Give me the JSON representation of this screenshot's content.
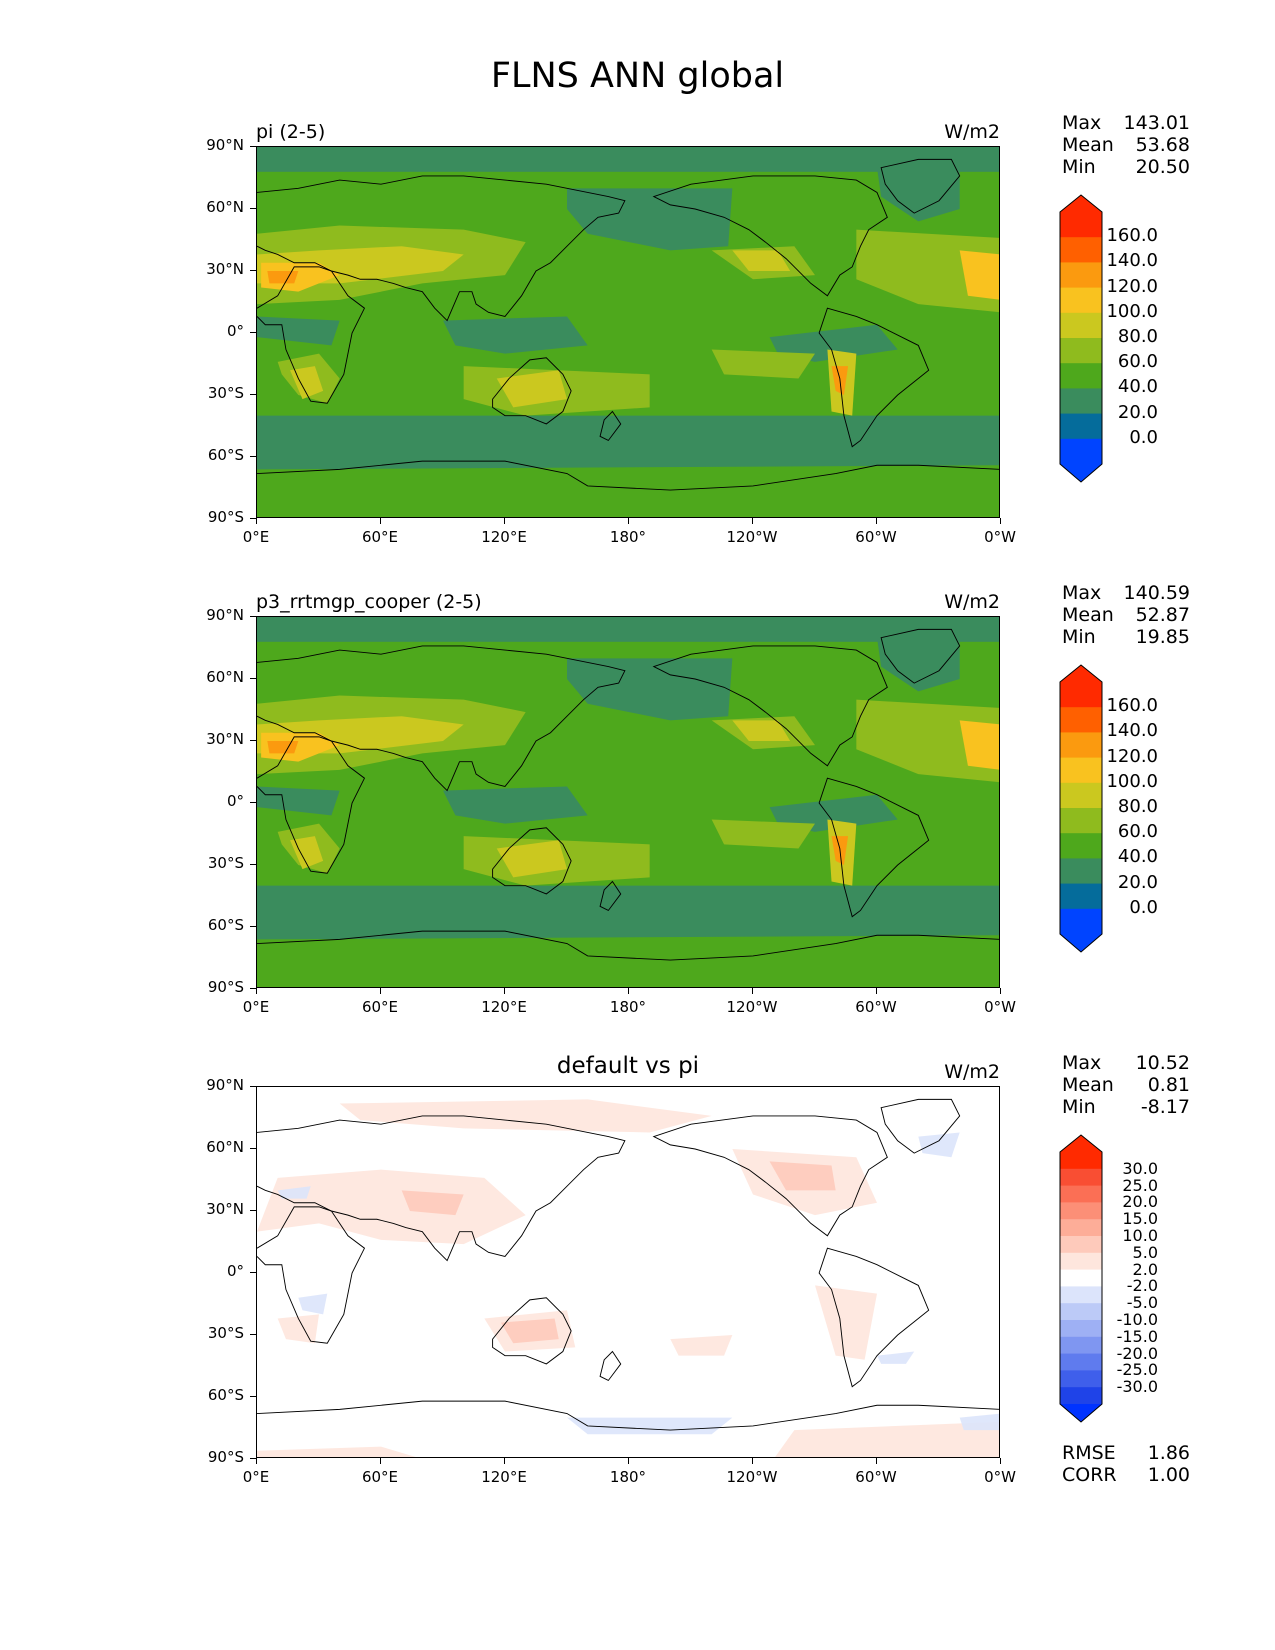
{
  "figure": {
    "title": "FLNS ANN global"
  },
  "axes": {
    "lat_ticks": [
      "90°N",
      "60°N",
      "30°N",
      "0°",
      "30°S",
      "60°S",
      "90°S"
    ],
    "lon_ticks": [
      "0°E",
      "60°E",
      "120°E",
      "180°",
      "120°W",
      "60°W",
      "0°W"
    ]
  },
  "panels": [
    {
      "title": "pi (2-5)",
      "unit": "W/m2",
      "stats": [
        {
          "label": "Max",
          "value": "143.01"
        },
        {
          "label": "Mean",
          "value": "53.68"
        },
        {
          "label": "Min",
          "value": "20.50"
        }
      ],
      "colorbar": {
        "labels": [
          "160.0",
          "140.0",
          "120.0",
          "100.0",
          "80.0",
          "60.0",
          "40.0",
          "20.0",
          "0.0"
        ],
        "colors": [
          "#ff2a00",
          "#ff6000",
          "#fb9a0f",
          "#f9c21f",
          "#cbc81f",
          "#8fbb1e",
          "#4ea81c",
          "#3a8c5d",
          "#056c9b",
          "#0044ff"
        ],
        "top_extend_color": "#ff2a00",
        "bottom_extend_color": "#0044ff"
      }
    },
    {
      "title": "p3_rrtmgp_cooper (2-5)",
      "unit": "W/m2",
      "stats": [
        {
          "label": "Max",
          "value": "140.59"
        },
        {
          "label": "Mean",
          "value": "52.87"
        },
        {
          "label": "Min",
          "value": "19.85"
        }
      ],
      "colorbar": {
        "labels": [
          "160.0",
          "140.0",
          "120.0",
          "100.0",
          "80.0",
          "60.0",
          "40.0",
          "20.0",
          "0.0"
        ],
        "colors": [
          "#ff2a00",
          "#ff6000",
          "#fb9a0f",
          "#f9c21f",
          "#cbc81f",
          "#8fbb1e",
          "#4ea81c",
          "#3a8c5d",
          "#056c9b",
          "#0044ff"
        ],
        "top_extend_color": "#ff2a00",
        "bottom_extend_color": "#0044ff"
      }
    },
    {
      "title": "default vs pi",
      "unit": "W/m2",
      "stats": [
        {
          "label": "Max",
          "value": "10.52"
        },
        {
          "label": "Mean",
          "value": "0.81"
        },
        {
          "label": "Min",
          "value": "-8.17"
        }
      ],
      "extra_stats": [
        {
          "label": "RMSE",
          "value": "1.86"
        },
        {
          "label": "CORR",
          "value": "1.00"
        }
      ],
      "colorbar": {
        "labels": [
          "30.0",
          "25.0",
          "20.0",
          "15.0",
          "10.0",
          "5.0",
          "2.0",
          "-2.0",
          "-5.0",
          "-10.0",
          "-15.0",
          "-20.0",
          "-25.0",
          "-30.0"
        ],
        "colors": [
          "#ff2a00",
          "#f94e33",
          "#fb6f55",
          "#fc8f77",
          "#fdad98",
          "#fecabb",
          "#fee6dd",
          "#ffffff",
          "#dce4fb",
          "#bccaf7",
          "#9eb0f4",
          "#7f96f1",
          "#5f7bee",
          "#3f5feb",
          "#1f43e8"
        ],
        "top_extend_color": "#ff2a00",
        "bottom_extend_color": "#0033ff"
      }
    }
  ]
}
